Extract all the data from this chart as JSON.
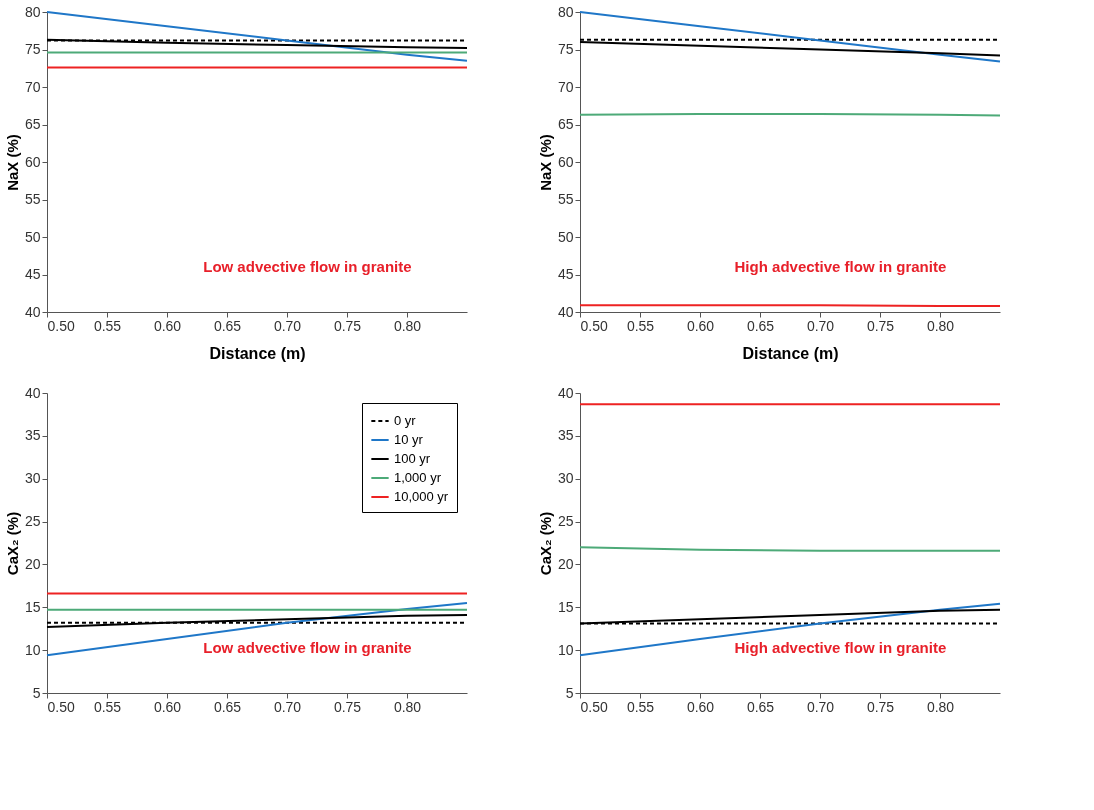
{
  "chart_data": [
    {
      "type": "line",
      "ylabel": "NaX (%)",
      "xlabel": "Distance (m)",
      "annotations": [
        "Low advective flow in granite"
      ],
      "xlim": [
        0.5,
        0.85
      ],
      "ylim": [
        40,
        80
      ],
      "xticks": [
        {
          "value": 0.5,
          "label": "0.50"
        },
        0.55,
        {
          "value": 0.6,
          "label": "0.60"
        },
        0.65,
        {
          "value": 0.7,
          "label": "0.70"
        },
        0.75,
        {
          "value": 0.8,
          "label": "0.80"
        }
      ],
      "yticks": [
        40,
        45,
        50,
        55,
        60,
        65,
        70,
        75,
        80
      ],
      "grid": false,
      "legend": false,
      "x": [
        0.5,
        0.6,
        0.7,
        0.8,
        0.85
      ],
      "series": [
        {
          "color": "#000000",
          "line_style": "dashed",
          "values": [
            76.2,
            76.2,
            76.2,
            76.2,
            76.2
          ]
        },
        {
          "color": "#1f77c8",
          "line_style": "solid",
          "values": [
            80,
            78.1,
            76.2,
            74.3,
            73.5
          ]
        },
        {
          "color": "#000000",
          "line_style": "solid",
          "values": [
            76.3,
            75.9,
            75.6,
            75.3,
            75.2
          ]
        },
        {
          "color": "#4daa78",
          "line_style": "solid",
          "values": [
            74.6,
            74.6,
            74.6,
            74.6,
            74.6
          ]
        },
        {
          "color": "#ee2222",
          "line_style": "solid",
          "values": [
            72.6,
            72.6,
            72.6,
            72.6,
            72.6
          ]
        }
      ]
    },
    {
      "type": "line",
      "ylabel": "NaX (%)",
      "xlabel": "Distance (m)",
      "annotations": [
        "High advective flow in granite"
      ],
      "xlim": [
        0.5,
        0.85
      ],
      "ylim": [
        40,
        80
      ],
      "xticks": [
        {
          "value": 0.5,
          "label": "0.50"
        },
        0.55,
        {
          "value": 0.6,
          "label": "0.60"
        },
        0.65,
        {
          "value": 0.7,
          "label": "0.70"
        },
        0.75,
        {
          "value": 0.8,
          "label": "0.80"
        }
      ],
      "yticks": [
        40,
        45,
        50,
        55,
        60,
        65,
        70,
        75,
        80
      ],
      "grid": false,
      "legend": false,
      "x": [
        0.5,
        0.6,
        0.7,
        0.8,
        0.85
      ],
      "series": [
        {
          "color": "#000000",
          "line_style": "dashed",
          "values": [
            76.3,
            76.3,
            76.3,
            76.3,
            76.3
          ]
        },
        {
          "color": "#1f77c8",
          "line_style": "solid",
          "values": [
            80,
            78.1,
            76.2,
            74.3,
            73.4
          ]
        },
        {
          "color": "#000000",
          "line_style": "solid",
          "values": [
            76,
            75.5,
            75,
            74.5,
            74.2
          ]
        },
        {
          "color": "#4daa78",
          "line_style": "solid",
          "values": [
            66.3,
            66.4,
            66.4,
            66.3,
            66.2
          ]
        },
        {
          "color": "#ee2222",
          "line_style": "solid",
          "values": [
            40.9,
            40.9,
            40.9,
            40.8,
            40.8
          ]
        }
      ]
    },
    {
      "type": "line",
      "ylabel": "CaX₂ (%)",
      "annotations": [
        "Low advective flow in granite"
      ],
      "xlim": [
        0.5,
        0.85
      ],
      "ylim": [
        5,
        40
      ],
      "xticks": [
        {
          "value": 0.5,
          "label": "0.50"
        },
        0.55,
        {
          "value": 0.6,
          "label": "0.60"
        },
        0.65,
        {
          "value": 0.7,
          "label": "0.70"
        },
        0.75,
        {
          "value": 0.8,
          "label": "0.80"
        }
      ],
      "yticks": [
        5,
        10,
        15,
        20,
        25,
        30,
        35,
        40
      ],
      "grid": false,
      "legend": "top right",
      "x": [
        0.5,
        0.6,
        0.7,
        0.8,
        0.85
      ],
      "series": [
        {
          "name": "0 yr",
          "color": "#000000",
          "line_style": "dashed",
          "values": [
            13.2,
            13.2,
            13.2,
            13.2,
            13.2
          ]
        },
        {
          "name": "10 yr",
          "color": "#1f77c8",
          "line_style": "solid",
          "values": [
            9.4,
            11.3,
            13.2,
            14.8,
            15.5
          ]
        },
        {
          "name": "100 yr",
          "color": "#000000",
          "line_style": "solid",
          "values": [
            12.7,
            13.2,
            13.6,
            14,
            14.1
          ]
        },
        {
          "name": "1,000 yr",
          "color": "#4daa78",
          "line_style": "solid",
          "values": [
            14.7,
            14.7,
            14.7,
            14.7,
            14.7
          ]
        },
        {
          "name": "10,000 yr",
          "color": "#ee2222",
          "line_style": "solid",
          "values": [
            16.6,
            16.6,
            16.6,
            16.6,
            16.6
          ]
        }
      ]
    },
    {
      "type": "line",
      "ylabel": "CaX₂ (%)",
      "annotations": [
        "High advective flow in granite"
      ],
      "xlim": [
        0.5,
        0.85
      ],
      "ylim": [
        5,
        40
      ],
      "xticks": [
        {
          "value": 0.5,
          "label": "0.50"
        },
        0.55,
        {
          "value": 0.6,
          "label": "0.60"
        },
        0.65,
        {
          "value": 0.7,
          "label": "0.70"
        },
        0.75,
        {
          "value": 0.8,
          "label": "0.80"
        }
      ],
      "yticks": [
        5,
        10,
        15,
        20,
        25,
        30,
        35,
        40
      ],
      "grid": false,
      "legend": false,
      "x": [
        0.5,
        0.6,
        0.7,
        0.8,
        0.85
      ],
      "series": [
        {
          "color": "#000000",
          "line_style": "dashed",
          "values": [
            13.1,
            13.1,
            13.1,
            13.1,
            13.1
          ]
        },
        {
          "color": "#1f77c8",
          "line_style": "solid",
          "values": [
            9.4,
            11.3,
            13.1,
            14.7,
            15.4
          ]
        },
        {
          "color": "#000000",
          "line_style": "solid",
          "values": [
            13.1,
            13.6,
            14.1,
            14.6,
            14.7
          ]
        },
        {
          "color": "#4daa78",
          "line_style": "solid",
          "values": [
            22,
            21.7,
            21.6,
            21.6,
            21.6
          ]
        },
        {
          "color": "#ee2222",
          "line_style": "solid",
          "values": [
            38.7,
            38.7,
            38.7,
            38.7,
            38.7
          ]
        }
      ]
    }
  ]
}
